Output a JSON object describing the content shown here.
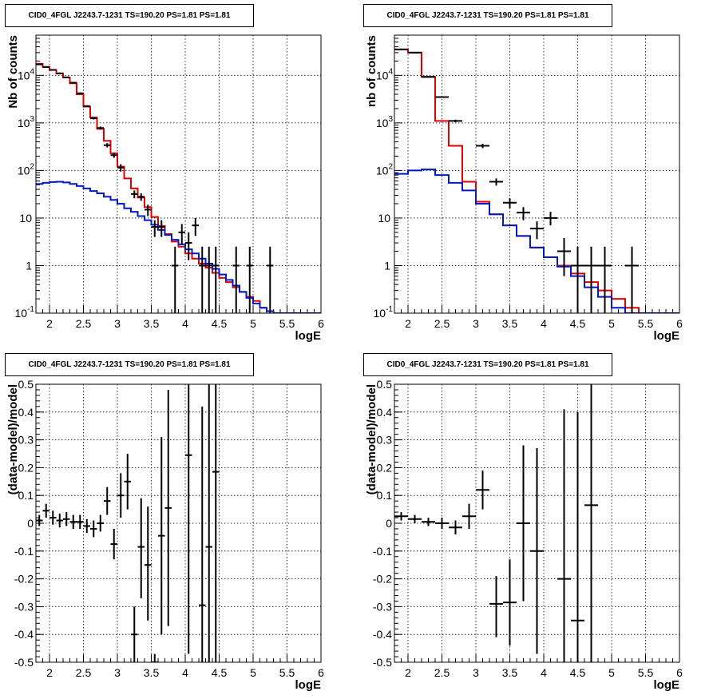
{
  "titles": [
    "CID0_4FGL J2243.7-1231 TS=190.20 PS=1.81 PS=1.81",
    "CID0_4FGL J2243.7-1231 TS=190.20 PS=1.81 PS=1.81",
    "CID0_4FGL J2243.7-1231 TS=190.20 PS=1.81 PS=1.81",
    "CID0_4FGL J2243.7-1231 TS=190.20 PS=1.81 PS=1.81"
  ],
  "colors": {
    "model": "#e00000",
    "background": "#0018c8",
    "data": "#000000"
  },
  "chart_data": [
    {
      "type": "histogram",
      "scale": "log",
      "xlabel": "logE",
      "ylabel": "Nb of counts",
      "xlim": [
        1.8,
        6
      ],
      "ylim": [
        0.1,
        70000
      ],
      "x_ticks": [
        "2",
        "2.5",
        "3",
        "3.5",
        "4",
        "4.5",
        "5",
        "5.5",
        "6"
      ],
      "y_ticks": [
        "10^-1",
        "1",
        "10",
        "10^2",
        "10^3",
        "10^4"
      ],
      "grid": true,
      "bin_edges_start": 1.8,
      "bin_width": 0.1,
      "series": [
        {
          "values": [
            17500,
            15000,
            13000,
            11000,
            9000,
            6800,
            4000,
            2200,
            1300,
            750,
            420,
            230,
            120,
            68,
            42,
            27,
            17,
            10.5,
            6.8,
            4.6,
            3.2,
            2.5,
            1.8,
            1.4,
            1.1,
            0.9,
            0.7,
            0.55,
            0.45,
            0.35,
            0.28,
            0.22,
            0.18,
            0.13
          ]
        },
        {
          "values": [
            52,
            55,
            57,
            58,
            56,
            52,
            47,
            42,
            37,
            33,
            28,
            24,
            20,
            16,
            13.5,
            11,
            9,
            7.2,
            5.6,
            4.4,
            3.5,
            2.8,
            2.2,
            1.8,
            1.4,
            1.1,
            0.85,
            0.65,
            0.5,
            0.38,
            0.28,
            0.21,
            0.16,
            0.13,
            0.11,
            0.1,
            0.1,
            0.1,
            0.1,
            0.1,
            0.1,
            0.1
          ]
        }
      ],
      "data_points": [
        {
          "x": 1.85,
          "y": 17000,
          "lo": 16700,
          "hi": 17300
        },
        {
          "x": 1.95,
          "y": 15000,
          "lo": 14750,
          "hi": 15250
        },
        {
          "x": 2.05,
          "y": 13000,
          "lo": 12770,
          "hi": 13230
        },
        {
          "x": 2.15,
          "y": 11000,
          "lo": 10800,
          "hi": 11200
        },
        {
          "x": 2.25,
          "y": 9100,
          "lo": 8900,
          "hi": 9300
        },
        {
          "x": 2.35,
          "y": 7000,
          "lo": 6830,
          "hi": 7170
        },
        {
          "x": 2.45,
          "y": 4200,
          "lo": 4070,
          "hi": 4330
        },
        {
          "x": 2.55,
          "y": 2250,
          "lo": 2150,
          "hi": 2350
        },
        {
          "x": 2.65,
          "y": 1250,
          "lo": 1180,
          "hi": 1320
        },
        {
          "x": 2.75,
          "y": 780,
          "lo": 720,
          "hi": 840
        },
        {
          "x": 2.85,
          "y": 340,
          "lo": 305,
          "hi": 375
        },
        {
          "x": 2.95,
          "y": 210,
          "lo": 185,
          "hi": 235
        },
        {
          "x": 3.05,
          "y": 115,
          "lo": 95,
          "hi": 135
        },
        {
          "x": 3.25,
          "y": 32,
          "lo": 26,
          "hi": 38
        },
        {
          "x": 3.35,
          "y": 28,
          "lo": 23,
          "hi": 33
        },
        {
          "x": 3.45,
          "y": 15,
          "lo": 11,
          "hi": 19
        },
        {
          "x": 3.55,
          "y": 6.5,
          "lo": 4,
          "hi": 9
        },
        {
          "x": 3.65,
          "y": 6.5,
          "lo": 4,
          "hi": 9
        },
        {
          "x": 3.85,
          "y": 1,
          "lo": 0.1,
          "hi": 2.5
        },
        {
          "x": 3.95,
          "y": 5,
          "lo": 2.8,
          "hi": 7.5
        },
        {
          "x": 4.05,
          "y": 3,
          "lo": 1.3,
          "hi": 5
        },
        {
          "x": 4.15,
          "y": 7,
          "lo": 4.2,
          "hi": 10
        },
        {
          "x": 4.25,
          "y": 1,
          "lo": 0.1,
          "hi": 2.5
        },
        {
          "x": 4.35,
          "y": 1,
          "lo": 0.1,
          "hi": 2.5
        },
        {
          "x": 4.45,
          "y": 1,
          "lo": 0.1,
          "hi": 2.5
        },
        {
          "x": 4.75,
          "y": 1,
          "lo": 0.1,
          "hi": 2.5
        },
        {
          "x": 4.95,
          "y": 1,
          "lo": 0.1,
          "hi": 2.5
        },
        {
          "x": 5.25,
          "y": 1,
          "lo": 0.1,
          "hi": 2.5
        }
      ]
    },
    {
      "type": "histogram",
      "scale": "log",
      "xlabel": "logE",
      "ylabel": "nb of counts",
      "xlim": [
        1.8,
        6
      ],
      "ylim": [
        0.1,
        70000
      ],
      "x_ticks": [
        "2",
        "2.5",
        "3",
        "3.5",
        "4",
        "4.5",
        "5",
        "5.5",
        "6"
      ],
      "y_ticks": [
        "10^-1",
        "1",
        "10",
        "10^2",
        "10^3",
        "10^4"
      ],
      "grid": true,
      "bin_edges_start": 1.8,
      "bin_width": 0.2,
      "series": [
        {
          "values": [
            35000,
            30000,
            9300,
            1100,
            330,
            58,
            22,
            12,
            7,
            4.2,
            2.4,
            1.5,
            1,
            0.68,
            0.45,
            0.3,
            0.2,
            0.13,
            0.1
          ]
        },
        {
          "values": [
            85,
            100,
            105,
            80,
            55,
            38,
            20,
            12,
            7,
            4.2,
            2.4,
            1.5,
            0.95,
            0.6,
            0.35,
            0.22,
            0.13,
            0.1,
            0.1,
            0.1,
            0.1
          ]
        }
      ],
      "data_points": [
        {
          "x": 1.9,
          "y": 35000,
          "lo": 34600,
          "hi": 35400
        },
        {
          "x": 2.1,
          "y": 30000,
          "lo": 29650,
          "hi": 30350
        },
        {
          "x": 2.3,
          "y": 9300,
          "lo": 9100,
          "hi": 9500
        },
        {
          "x": 2.5,
          "y": 3500,
          "lo": 3380,
          "hi": 3620
        },
        {
          "x": 2.7,
          "y": 1100,
          "lo": 1030,
          "hi": 1170
        },
        {
          "x": 3.1,
          "y": 330,
          "lo": 295,
          "hi": 365
        },
        {
          "x": 3.3,
          "y": 58,
          "lo": 48,
          "hi": 68
        },
        {
          "x": 3.5,
          "y": 21,
          "lo": 16,
          "hi": 26
        },
        {
          "x": 3.7,
          "y": 13,
          "lo": 9,
          "hi": 17
        },
        {
          "x": 3.9,
          "y": 6,
          "lo": 3.6,
          "hi": 8.5
        },
        {
          "x": 4.1,
          "y": 10,
          "lo": 7,
          "hi": 13.5
        },
        {
          "x": 4.3,
          "y": 2,
          "lo": 0.6,
          "hi": 3.8
        },
        {
          "x": 4.5,
          "y": 1,
          "lo": 0.1,
          "hi": 2.5
        },
        {
          "x": 4.7,
          "y": 1,
          "lo": 0.1,
          "hi": 2.5
        },
        {
          "x": 4.9,
          "y": 1,
          "lo": 0.1,
          "hi": 2.5
        },
        {
          "x": 5.3,
          "y": 1,
          "lo": 0.1,
          "hi": 2.5
        }
      ]
    },
    {
      "type": "scatter",
      "scale": "linear",
      "xlabel": "logE",
      "ylabel": "(data-model)/model",
      "xlim": [
        1.8,
        6
      ],
      "ylim": [
        -0.5,
        0.5
      ],
      "x_ticks": [
        "2",
        "2.5",
        "3",
        "3.5",
        "4",
        "4.5",
        "5",
        "5.5",
        "6"
      ],
      "y_ticks": [
        "-0.5",
        "-0.4",
        "-0.3",
        "-0.2",
        "-0.1",
        "0",
        "0.1",
        "0.2",
        "0.3",
        "0.4",
        "0.5"
      ],
      "grid": true,
      "half_width": 0.05,
      "data_points": [
        {
          "x": 1.85,
          "y": 0.01,
          "lo": -0.01,
          "hi": 0.03
        },
        {
          "x": 1.95,
          "y": 0.045,
          "lo": 0.02,
          "hi": 0.07
        },
        {
          "x": 2.05,
          "y": 0.02,
          "lo": -0.005,
          "hi": 0.045
        },
        {
          "x": 2.15,
          "y": 0.01,
          "lo": -0.015,
          "hi": 0.035
        },
        {
          "x": 2.25,
          "y": 0.015,
          "lo": -0.01,
          "hi": 0.04
        },
        {
          "x": 2.35,
          "y": 0.005,
          "lo": -0.02,
          "hi": 0.03
        },
        {
          "x": 2.45,
          "y": 0.005,
          "lo": -0.02,
          "hi": 0.03
        },
        {
          "x": 2.55,
          "y": -0.01,
          "lo": -0.035,
          "hi": 0.015
        },
        {
          "x": 2.65,
          "y": -0.02,
          "lo": -0.05,
          "hi": 0.01
        },
        {
          "x": 2.75,
          "y": 0.0,
          "lo": -0.03,
          "hi": 0.03
        },
        {
          "x": 2.85,
          "y": 0.08,
          "lo": 0.03,
          "hi": 0.13
        },
        {
          "x": 2.95,
          "y": -0.075,
          "lo": -0.13,
          "hi": -0.02
        },
        {
          "x": 3.05,
          "y": 0.1,
          "lo": 0.02,
          "hi": 0.18
        },
        {
          "x": 3.15,
          "y": 0.15,
          "lo": 0.05,
          "hi": 0.25
        },
        {
          "x": 3.25,
          "y": -0.4,
          "lo": -0.5,
          "hi": -0.3
        },
        {
          "x": 3.35,
          "y": -0.085,
          "lo": -0.27,
          "hi": 0.09
        },
        {
          "x": 3.45,
          "y": -0.15,
          "lo": -0.35,
          "hi": 0.06
        },
        {
          "x": 3.55,
          "y": -0.5,
          "lo": -0.5,
          "hi": -0.47
        },
        {
          "x": 3.65,
          "y": -0.045,
          "lo": -0.4,
          "hi": 0.31
        },
        {
          "x": 3.75,
          "y": 0.055,
          "lo": -0.37,
          "hi": 0.48
        },
        {
          "x": 4.05,
          "y": 0.245,
          "lo": -0.47,
          "hi": 0.5
        },
        {
          "x": 4.25,
          "y": -0.295,
          "lo": -0.5,
          "hi": 0.42
        },
        {
          "x": 4.35,
          "y": -0.085,
          "lo": -0.5,
          "hi": 0.5
        },
        {
          "x": 4.45,
          "y": 0.185,
          "lo": -0.5,
          "hi": 0.5
        }
      ]
    },
    {
      "type": "scatter",
      "scale": "linear",
      "xlabel": "logE",
      "ylabel": "(data-model)/model",
      "xlim": [
        1.8,
        6
      ],
      "ylim": [
        -0.5,
        0.5
      ],
      "x_ticks": [
        "2",
        "2.5",
        "3",
        "3.5",
        "4",
        "4.5",
        "5",
        "5.5",
        "6"
      ],
      "y_ticks": [
        "-0.5",
        "-0.4",
        "-0.3",
        "-0.2",
        "-0.1",
        "0",
        "0.1",
        "0.2",
        "0.3",
        "0.4",
        "0.5"
      ],
      "grid": true,
      "half_width": 0.1,
      "data_points": [
        {
          "x": 1.9,
          "y": 0.025,
          "lo": 0.01,
          "hi": 0.04
        },
        {
          "x": 2.1,
          "y": 0.015,
          "lo": 0.0,
          "hi": 0.03
        },
        {
          "x": 2.3,
          "y": 0.005,
          "lo": -0.01,
          "hi": 0.02
        },
        {
          "x": 2.5,
          "y": 0.0,
          "lo": -0.02,
          "hi": 0.02
        },
        {
          "x": 2.7,
          "y": -0.015,
          "lo": -0.04,
          "hi": 0.01
        },
        {
          "x": 2.9,
          "y": 0.025,
          "lo": -0.02,
          "hi": 0.07
        },
        {
          "x": 3.1,
          "y": 0.12,
          "lo": 0.05,
          "hi": 0.19
        },
        {
          "x": 3.3,
          "y": -0.29,
          "lo": -0.41,
          "hi": -0.19
        },
        {
          "x": 3.5,
          "y": -0.285,
          "lo": -0.44,
          "hi": -0.13
        },
        {
          "x": 3.7,
          "y": 0.0,
          "lo": -0.28,
          "hi": 0.28
        },
        {
          "x": 3.9,
          "y": -0.1,
          "lo": -0.47,
          "hi": 0.27
        },
        {
          "x": 4.3,
          "y": -0.2,
          "lo": -0.5,
          "hi": 0.41
        },
        {
          "x": 4.5,
          "y": -0.35,
          "lo": -0.5,
          "hi": 0.4
        },
        {
          "x": 4.7,
          "y": 0.065,
          "lo": -0.5,
          "hi": 0.5
        }
      ]
    }
  ]
}
